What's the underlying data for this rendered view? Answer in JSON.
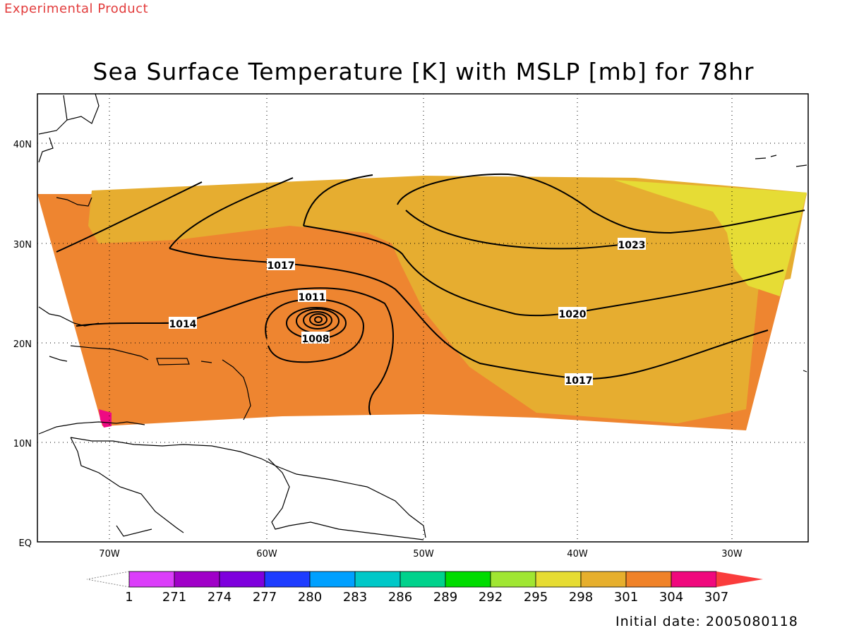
{
  "watermark": "Experimental Product",
  "title": "Sea Surface Temperature [K] with MSLP [mb] for 78hr",
  "initial_date": "Initial date: 2005080118",
  "map": {
    "lon_labels": [
      "70W",
      "60W",
      "50W",
      "40W",
      "30W"
    ],
    "lat_labels": [
      "40N",
      "30N",
      "20N",
      "10N",
      "EQ"
    ],
    "isobar_labels": [
      {
        "text": "1023",
        "name": "isobar-label-1023"
      },
      {
        "text": "1017",
        "name": "isobar-label-1017-west"
      },
      {
        "text": "1011",
        "name": "isobar-label-1011"
      },
      {
        "text": "1014",
        "name": "isobar-label-1014"
      },
      {
        "text": "1008",
        "name": "isobar-label-1008"
      },
      {
        "text": "1020",
        "name": "isobar-label-1020"
      },
      {
        "text": "1017",
        "name": "isobar-label-1017-east"
      }
    ],
    "sst_colors": {
      "sst_301_304": "#ee8530",
      "sst_298_301": "#e6ad30",
      "sst_295_298": "#e6dc35",
      "sst_304_307": "#ee0a82"
    }
  },
  "colorbar": {
    "labels": [
      "1",
      "271",
      "274",
      "277",
      "280",
      "283",
      "286",
      "289",
      "292",
      "295",
      "298",
      "301",
      "304",
      "307"
    ],
    "colors": [
      "#db3dfa",
      "#a000c8",
      "#7e00dd",
      "#1e3cff",
      "#00a0ff",
      "#00c8c8",
      "#00d28c",
      "#00dc00",
      "#a0e632",
      "#e6dc32",
      "#e6af2d",
      "#f08228",
      "#f0087d",
      "#fa3c3c"
    ]
  }
}
